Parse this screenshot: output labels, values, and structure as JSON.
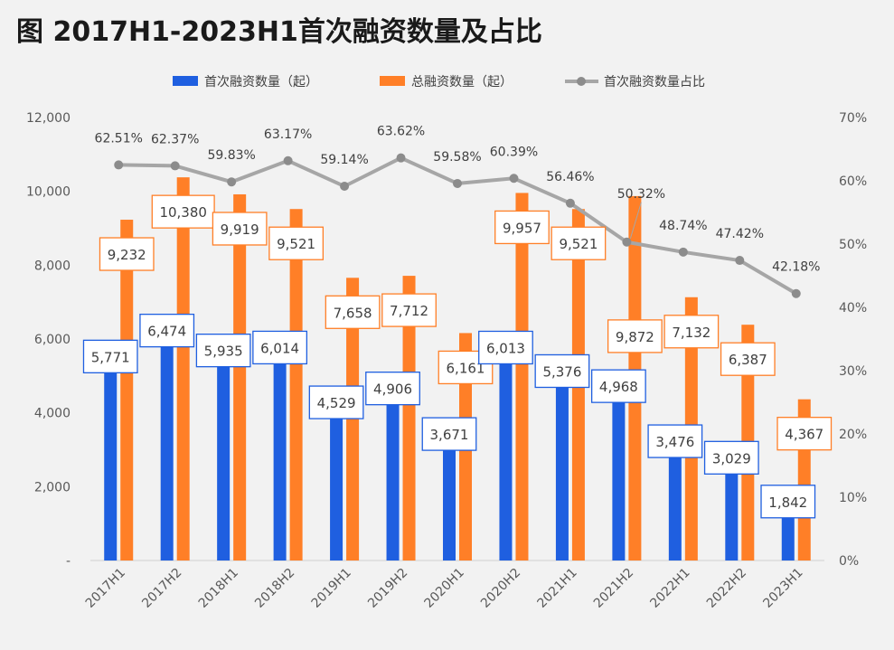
{
  "title": "图 2017H1-2023H1首次融资数量及占比",
  "chart_data": {
    "type": "bar",
    "categories": [
      "2017H1",
      "2017H2",
      "2018H1",
      "2018H2",
      "2019H1",
      "2019H2",
      "2020H1",
      "2020H2",
      "2021H1",
      "2021H2",
      "2022H1",
      "2022H2",
      "2023H1"
    ],
    "series": [
      {
        "name": "首次融资数量（起）",
        "type": "bar",
        "axis": "left",
        "color": "#1f5fe0",
        "values": [
          5771,
          6474,
          5935,
          6014,
          4529,
          4906,
          3671,
          6013,
          5376,
          4968,
          3476,
          3029,
          1842
        ],
        "labels": [
          "5,771",
          "6,474",
          "5,935",
          "6,014",
          "4,529",
          "4,906",
          "3,671",
          "6,013",
          "5,376",
          "4,968",
          "3,476",
          "3,029",
          "1,842"
        ]
      },
      {
        "name": "总融资数量（起）",
        "type": "bar",
        "axis": "left",
        "color": "#ff7f27",
        "values": [
          9232,
          10380,
          9919,
          9521,
          7658,
          7712,
          6161,
          9957,
          9521,
          9872,
          7132,
          6387,
          4367
        ],
        "labels": [
          "9,232",
          "10,380",
          "9,919",
          "9,521",
          "7,658",
          "7,712",
          "6,161",
          "9,957",
          "9,521",
          "9,872",
          "7,132",
          "6,387",
          "4,367"
        ]
      },
      {
        "name": "首次融资数量占比",
        "type": "line",
        "axis": "right",
        "color": "#a6a6a6",
        "values": [
          62.51,
          62.37,
          59.83,
          63.17,
          59.14,
          63.62,
          59.58,
          60.39,
          56.46,
          50.32,
          48.74,
          47.42,
          42.18
        ],
        "labels": [
          "62.51%",
          "62.37%",
          "59.83%",
          "63.17%",
          "59.14%",
          "63.62%",
          "59.58%",
          "60.39%",
          "56.46%",
          "50.32%",
          "48.74%",
          "47.42%",
          "42.18%"
        ]
      }
    ],
    "y_left": {
      "range": [
        0,
        12000
      ],
      "ticks": [
        "-",
        "2,000",
        "4,000",
        "6,000",
        "8,000",
        "10,000",
        "12,000"
      ]
    },
    "y_right": {
      "range": [
        0,
        70
      ],
      "ticks": [
        "0%",
        "10%",
        "20%",
        "30%",
        "40%",
        "50%",
        "60%",
        "70%"
      ]
    },
    "legend_position": "top-center",
    "grid": false
  }
}
